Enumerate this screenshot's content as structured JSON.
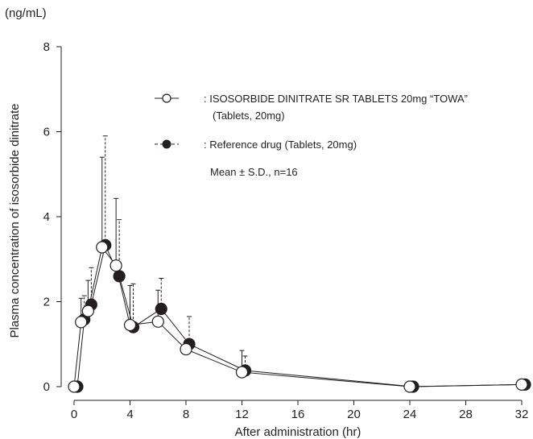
{
  "chart_data": {
    "type": "line",
    "unit_label": "(ng/mL)",
    "xlabel": "After administration (hr)",
    "ylabel": "Plasma concentration of isosorbide dinitrate",
    "xlim": [
      0,
      32
    ],
    "ylim": [
      0,
      8
    ],
    "xticks": [
      0,
      4,
      8,
      12,
      16,
      20,
      24,
      28,
      32
    ],
    "yticks": [
      0,
      2,
      4,
      6,
      8
    ],
    "grid": false,
    "legend_position": "top-right",
    "series": [
      {
        "name": ": ISOSORBIDE DINITRATE SR TABLETS 20mg “TOWA”",
        "name_line2": "(Tablets, 20mg)",
        "marker": "open-circle",
        "line_style": "solid",
        "x": [
          0,
          0.5,
          1,
          2,
          3,
          4,
          6,
          8,
          12,
          24,
          32
        ],
        "y": [
          0,
          1.52,
          1.78,
          3.28,
          2.85,
          1.45,
          1.53,
          0.88,
          0.34,
          0,
          0.05
        ],
        "sd_top": [
          null,
          2.08,
          2.5,
          5.4,
          4.43,
          2.38,
          2.27,
          null,
          0.85,
          null,
          null
        ]
      },
      {
        "name": ": Reference drug (Tablets, 20mg)",
        "marker": "filled-circle",
        "line_style": "dashed",
        "x": [
          0,
          0.5,
          1,
          2,
          3,
          4,
          6,
          8,
          12,
          24,
          32
        ],
        "y": [
          0,
          1.58,
          1.93,
          3.33,
          2.6,
          1.4,
          1.83,
          1.0,
          0.38,
          0,
          0.05
        ],
        "sd_top": [
          null,
          2.14,
          2.8,
          5.9,
          3.93,
          2.42,
          2.55,
          1.65,
          0.72,
          null,
          null
        ]
      }
    ],
    "annotation": "Mean ± S.D., n=16"
  }
}
